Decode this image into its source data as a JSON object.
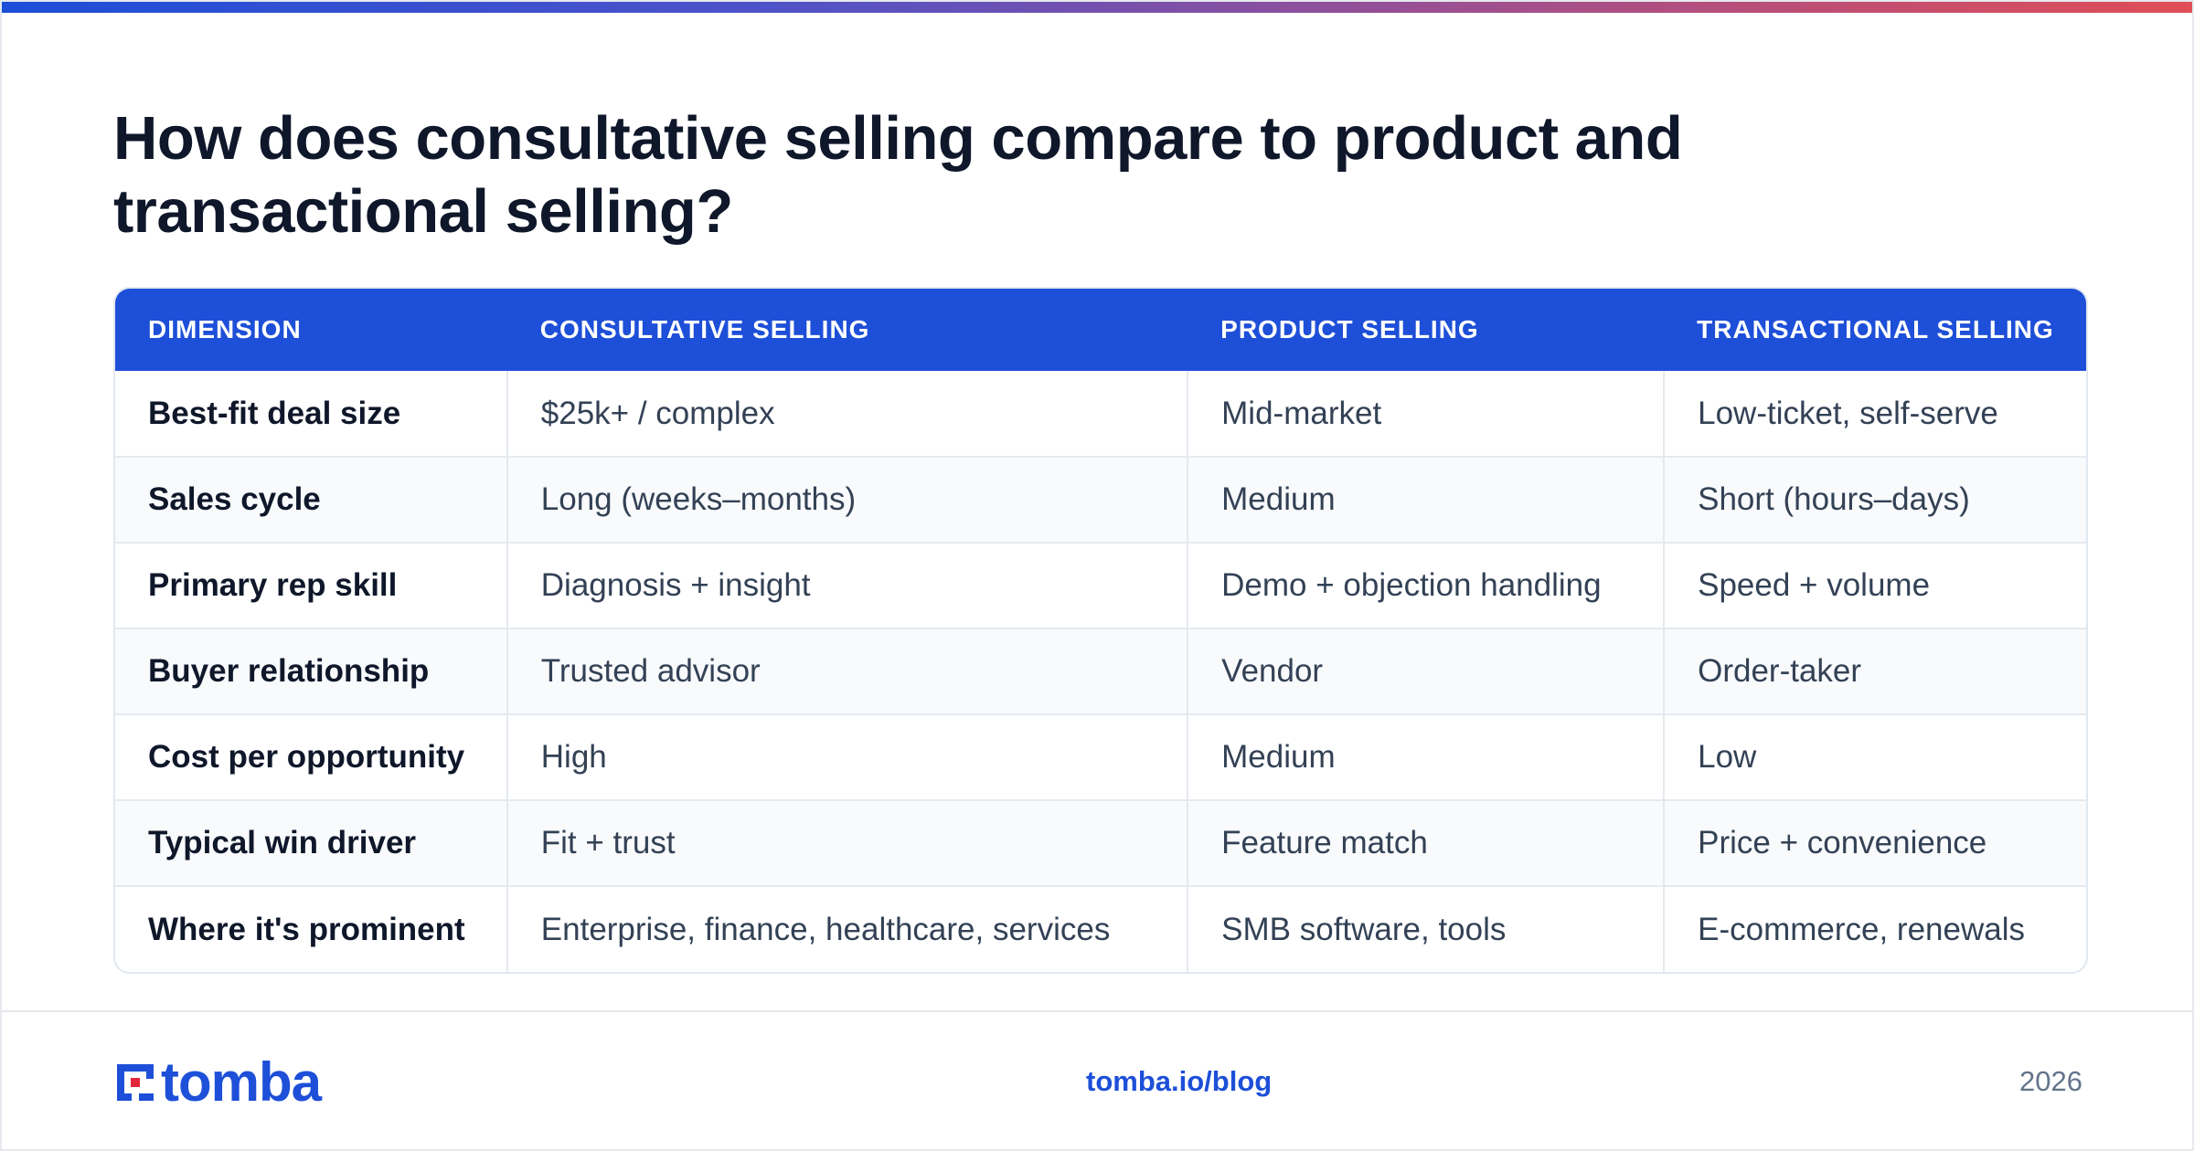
{
  "title": "How does consultative selling compare to product and transactional selling?",
  "table": {
    "headers": [
      "DIMENSION",
      "CONSULTATIVE SELLING",
      "PRODUCT SELLING",
      "TRANSACTIONAL SELLING"
    ],
    "rows": [
      [
        "Best-fit deal size",
        "$25k+ / complex",
        "Mid-market",
        "Low-ticket, self-serve"
      ],
      [
        "Sales cycle",
        "Long (weeks–months)",
        "Medium",
        "Short (hours–days)"
      ],
      [
        "Primary rep skill",
        "Diagnosis + insight",
        "Demo + objection handling",
        "Speed + volume"
      ],
      [
        "Buyer relationship",
        "Trusted advisor",
        "Vendor",
        "Order-taker"
      ],
      [
        "Cost per opportunity",
        "High",
        "Medium",
        "Low"
      ],
      [
        "Typical win driver",
        "Fit + trust",
        "Feature match",
        "Price + convenience"
      ],
      [
        "Where it's prominent",
        "Enterprise, finance, healthcare, services",
        "SMB software, tools",
        "E-commerce, renewals"
      ]
    ]
  },
  "footer": {
    "logo_text": "tomba",
    "logo_icon": "tomba-logo-icon",
    "link": "tomba.io/blog",
    "year": "2026"
  },
  "colors": {
    "accent": "#1d4fd8",
    "logo_red": "#e3263b",
    "title": "#0f172a",
    "body_text": "#334155"
  }
}
